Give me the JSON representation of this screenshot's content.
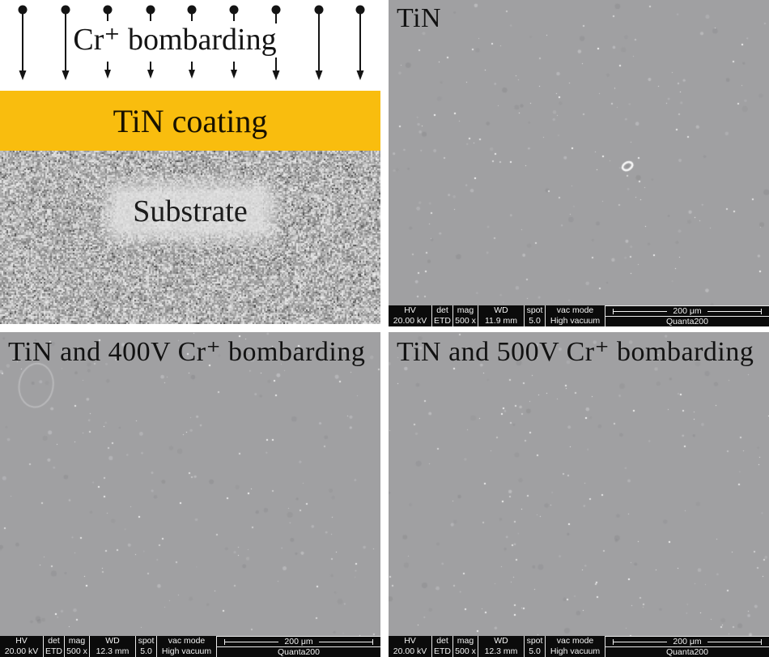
{
  "schematic": {
    "bombarding_label": "Cr⁺ bombarding",
    "coating_label": "TiN coating",
    "substrate_label": "Substrate",
    "coating_color": "#f9bd0e"
  },
  "info_headers": {
    "hv": "HV",
    "det": "det",
    "mag": "mag",
    "wd": "WD",
    "spot": "spot",
    "vac_mode": "vac mode"
  },
  "panels": [
    {
      "label": "TiN",
      "info": {
        "hv": "20.00 kV",
        "det": "ETD",
        "mag": "500 x",
        "wd": "11.9 mm",
        "spot": "5.0",
        "vac_mode": "High vacuum",
        "scale": "200 μm",
        "instrument": "Quanta200"
      }
    },
    {
      "label": "TiN and 400V Cr⁺ bombarding",
      "info": {
        "hv": "20.00 kV",
        "det": "ETD",
        "mag": "500 x",
        "wd": "12.3 mm",
        "spot": "5.0",
        "vac_mode": "High vacuum",
        "scale": "200 μm",
        "instrument": "Quanta200"
      }
    },
    {
      "label": "TiN and 500V Cr⁺ bombarding",
      "info": {
        "hv": "20.00 kV",
        "det": "ETD",
        "mag": "500 x",
        "wd": "12.3 mm",
        "spot": "5.0",
        "vac_mode": "High vacuum",
        "scale": "200 μm",
        "instrument": "Quanta200"
      }
    }
  ],
  "colors": {
    "sem_background": "#a0a0a2",
    "info_bar_background": "#0b0b0b",
    "info_bar_text": "#f2f2f2"
  }
}
